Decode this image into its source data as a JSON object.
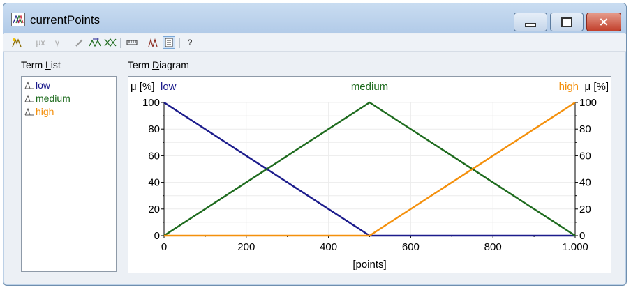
{
  "window": {
    "title": "currentPoints",
    "buttons": {
      "minimize": "minimize",
      "maximize": "maximize",
      "close": "close"
    }
  },
  "toolbar": {
    "items": [
      {
        "name": "new-term-icon",
        "enabled": true
      },
      {
        "name": "mu-x-icon",
        "glyph": "μx",
        "enabled": false
      },
      {
        "name": "gamma-icon",
        "glyph": "γ",
        "enabled": false
      },
      {
        "name": "pencil-icon",
        "enabled": false
      },
      {
        "name": "shift-icon",
        "enabled": true
      },
      {
        "name": "crossover-icon",
        "enabled": true
      },
      {
        "name": "ruler-icon",
        "enabled": true
      },
      {
        "name": "auto-terms-icon",
        "enabled": true
      },
      {
        "name": "list-view-icon",
        "enabled": true,
        "active": true
      },
      {
        "name": "help-icon",
        "enabled": true
      }
    ]
  },
  "term_list": {
    "label": "Term List",
    "label_accel": "L",
    "terms": [
      {
        "name": "low",
        "color": "#1c1c8c"
      },
      {
        "name": "medium",
        "color": "#1e6b1e"
      },
      {
        "name": "high",
        "color": "#f4900c"
      }
    ]
  },
  "diagram": {
    "label": "Term Diagram",
    "label_accel": "D",
    "y_unit_left": "μ [%]",
    "y_unit_right": "μ [%]",
    "term_labels": [
      "low",
      "medium",
      "high"
    ]
  },
  "chart_data": {
    "type": "line",
    "xlabel": "[points]",
    "ylabel": "μ [%]",
    "xlim": [
      0,
      1000
    ],
    "ylim": [
      0,
      100
    ],
    "x_ticks": [
      "0",
      "200",
      "400",
      "600",
      "800",
      "1.000"
    ],
    "y_ticks": [
      "0",
      "20",
      "40",
      "60",
      "80",
      "100"
    ],
    "grid": true,
    "series": [
      {
        "name": "low",
        "color": "#1c1c8c",
        "points": [
          [
            0,
            100
          ],
          [
            500,
            0
          ],
          [
            1000,
            0
          ]
        ]
      },
      {
        "name": "medium",
        "color": "#1e6b1e",
        "points": [
          [
            0,
            0
          ],
          [
            500,
            100
          ],
          [
            1000,
            0
          ]
        ]
      },
      {
        "name": "high",
        "color": "#f4900c",
        "points": [
          [
            0,
            0
          ],
          [
            500,
            0
          ],
          [
            1000,
            100
          ]
        ]
      }
    ]
  }
}
